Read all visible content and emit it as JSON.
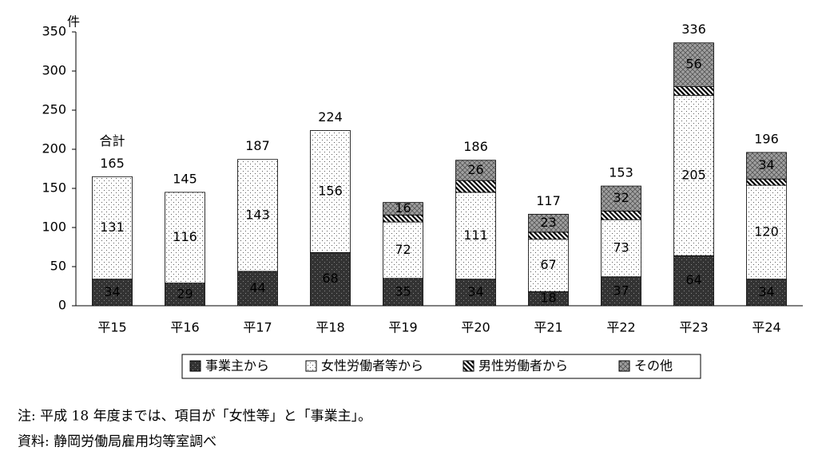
{
  "chart_data": {
    "type": "bar",
    "stacked": true,
    "y_unit": "件",
    "categories": [
      "平15",
      "平16",
      "平17",
      "平18",
      "平19",
      "平20",
      "平21",
      "平22",
      "平23",
      "平24"
    ],
    "series": [
      {
        "name": "事業主から",
        "color": "#333333",
        "values": [
          34,
          29,
          44,
          68,
          35,
          34,
          18,
          37,
          64,
          34
        ]
      },
      {
        "name": "女性労働者等から",
        "color": "#ffffff",
        "values": [
          131,
          116,
          143,
          156,
          72,
          111,
          67,
          73,
          205,
          120
        ]
      },
      {
        "name": "男性労働者から",
        "color": "#000000",
        "values": [
          0,
          0,
          0,
          0,
          9,
          15,
          9,
          11,
          11,
          8
        ]
      },
      {
        "name": "その他",
        "color": "#a0a0a0",
        "values": [
          0,
          0,
          0,
          0,
          16,
          26,
          23,
          32,
          56,
          34
        ]
      }
    ],
    "totals_label": "合計",
    "totals": [
      165,
      145,
      187,
      224,
      null,
      186,
      117,
      153,
      336,
      196
    ],
    "ylim": [
      0,
      350
    ],
    "yticks": [
      0,
      50,
      100,
      150,
      200,
      250,
      300,
      350
    ],
    "notes": [
      "注: 平成 18 年度までは、項目が「女性等」と「事業主」。",
      "資料: 静岡労働局雇用均等室調べ"
    ]
  }
}
